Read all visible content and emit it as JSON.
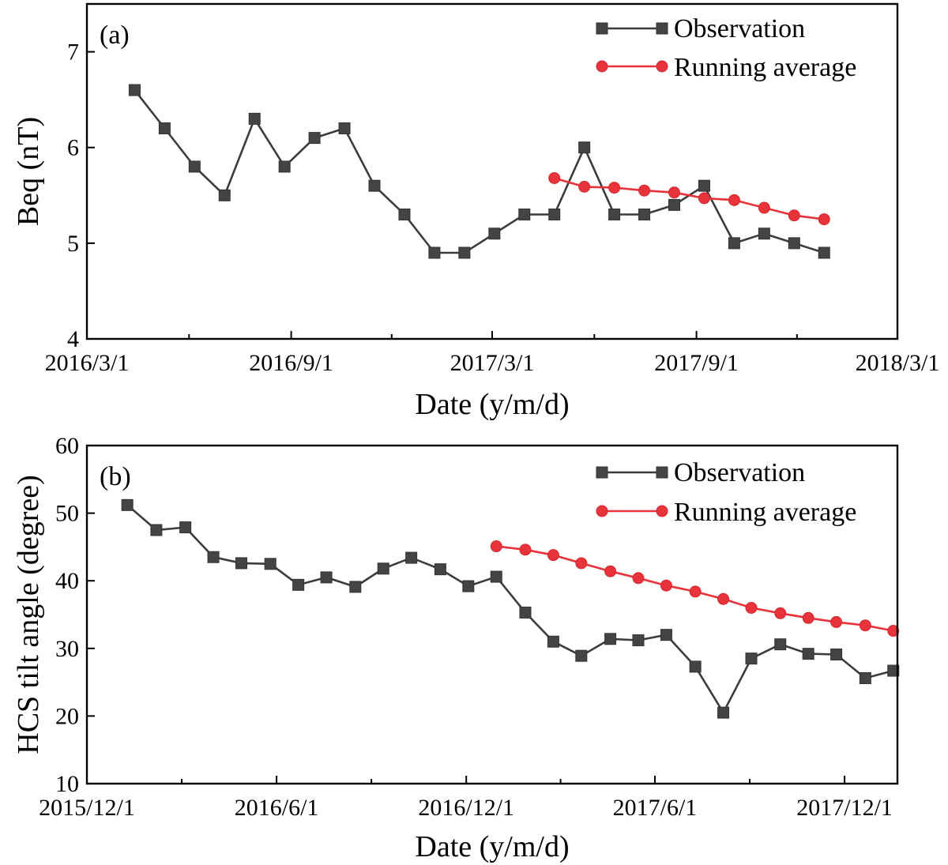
{
  "chart_data": [
    {
      "type": "line",
      "panel_label": "(a)",
      "xlabel": "Date (y/m/d)",
      "ylabel": "Beq (nT)",
      "ylim": [
        4,
        7.5
      ],
      "xlim": [
        "2016-03-01",
        "2018-03-01"
      ],
      "yticks": [
        4,
        5,
        6,
        7
      ],
      "xticks": [
        {
          "date": "2016-03-01",
          "label": "2016/3/1"
        },
        {
          "date": "2016-09-01",
          "label": "2016/9/1"
        },
        {
          "date": "2017-03-01",
          "label": "2017/3/1"
        },
        {
          "date": "2017-09-01",
          "label": "2017/9/1"
        },
        {
          "date": "2018-03-01",
          "label": "2018/3/1"
        }
      ],
      "legend_position": "top-right",
      "series": [
        {
          "name": "Observation",
          "color": "#444444",
          "marker": "square",
          "x": [
            "2016-04-13",
            "2016-05-10",
            "2016-06-06",
            "2016-07-03",
            "2016-07-30",
            "2016-08-26",
            "2016-09-22",
            "2016-10-19",
            "2016-11-15",
            "2016-12-12",
            "2017-01-08",
            "2017-02-04",
            "2017-03-03",
            "2017-03-30",
            "2017-04-26",
            "2017-05-23",
            "2017-06-19",
            "2017-07-16",
            "2017-08-12",
            "2017-09-08",
            "2017-10-05",
            "2017-11-01",
            "2017-11-28",
            "2017-12-25"
          ],
          "values": [
            6.6,
            6.2,
            5.8,
            5.5,
            6.3,
            5.8,
            6.1,
            6.2,
            5.6,
            5.3,
            4.9,
            4.9,
            5.1,
            5.3,
            5.3,
            6.0,
            5.3,
            5.3,
            5.4,
            5.6,
            5.0,
            5.1,
            5.0,
            4.9
          ]
        },
        {
          "name": "Running average",
          "color": "#e8333a",
          "marker": "circle",
          "x": [
            "2017-04-26",
            "2017-05-23",
            "2017-06-19",
            "2017-07-16",
            "2017-08-12",
            "2017-09-08",
            "2017-10-05",
            "2017-11-01",
            "2017-11-28",
            "2017-12-25"
          ],
          "values": [
            5.68,
            5.59,
            5.58,
            5.55,
            5.53,
            5.47,
            5.45,
            5.37,
            5.29,
            5.25
          ]
        }
      ]
    },
    {
      "type": "line",
      "panel_label": "(b)",
      "xlabel": "Date (y/m/d)",
      "ylabel": "HCS tilt angle (degree)",
      "ylim": [
        10,
        60
      ],
      "xlim": [
        "2015-12-01",
        "2018-01-21"
      ],
      "yticks": [
        10,
        20,
        30,
        40,
        50,
        60
      ],
      "xticks": [
        {
          "date": "2015-12-01",
          "label": "2015/12/1"
        },
        {
          "date": "2016-06-01",
          "label": "2016/6/1"
        },
        {
          "date": "2016-12-01",
          "label": "2016/12/1"
        },
        {
          "date": "2017-06-01",
          "label": "2017/6/1"
        },
        {
          "date": "2017-12-01",
          "label": "2017/12/1"
        }
      ],
      "legend_position": "top-right",
      "series": [
        {
          "name": "Observation",
          "color": "#444444",
          "marker": "square",
          "x": [
            "2016-01-09",
            "2016-02-06",
            "2016-03-05",
            "2016-04-01",
            "2016-04-28",
            "2016-05-26",
            "2016-06-22",
            "2016-07-19",
            "2016-08-16",
            "2016-09-12",
            "2016-10-09",
            "2016-11-06",
            "2016-12-03",
            "2016-12-30",
            "2017-01-27",
            "2017-02-23",
            "2017-03-22",
            "2017-04-19",
            "2017-05-16",
            "2017-06-12",
            "2017-07-10",
            "2017-08-06",
            "2017-09-02",
            "2017-09-30",
            "2017-10-27",
            "2017-11-23",
            "2017-12-21",
            "2018-01-17"
          ],
          "values": [
            51.2,
            47.5,
            47.9,
            43.5,
            42.6,
            42.5,
            39.4,
            40.5,
            39.1,
            41.8,
            43.4,
            41.7,
            39.2,
            40.6,
            35.3,
            31.0,
            28.9,
            31.4,
            31.2,
            32.0,
            27.3,
            20.5,
            28.5,
            30.6,
            29.2,
            29.1,
            25.6,
            26.7
          ]
        },
        {
          "name": "Running average",
          "color": "#e8333a",
          "marker": "circle",
          "x": [
            "2016-12-30",
            "2017-01-27",
            "2017-02-23",
            "2017-03-22",
            "2017-04-19",
            "2017-05-16",
            "2017-06-12",
            "2017-07-10",
            "2017-08-06",
            "2017-09-02",
            "2017-09-30",
            "2017-10-27",
            "2017-11-23",
            "2017-12-21",
            "2018-01-17"
          ],
          "values": [
            45.1,
            44.6,
            43.8,
            42.6,
            41.4,
            40.4,
            39.3,
            38.4,
            37.3,
            36.0,
            35.2,
            34.5,
            33.9,
            33.4,
            32.6
          ]
        }
      ]
    }
  ]
}
